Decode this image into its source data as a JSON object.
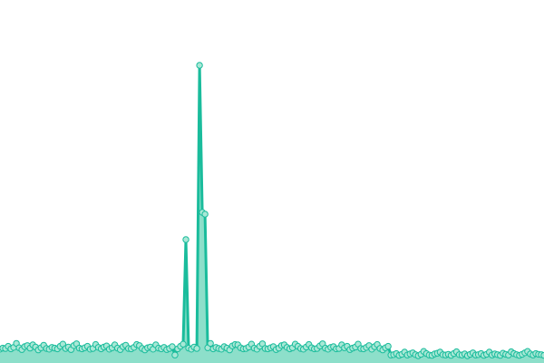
{
  "chart_data": {
    "type": "area",
    "title": "",
    "xlabel": "",
    "ylabel": "",
    "ylim": [
      0,
      100
    ],
    "grid": false,
    "legend": "none",
    "markers": true,
    "colors": {
      "line": "#1abc9c",
      "fill": "#8ddfca",
      "marker_fill": "#a9e8d6",
      "marker_stroke": "#1abc9c"
    },
    "series": [
      {
        "values": [
          3.8,
          4.1,
          4.0,
          4.6,
          3.9,
          4.3,
          5.4,
          4.2,
          3.7,
          4.5,
          4.8,
          4.1,
          5.0,
          4.4,
          3.6,
          4.2,
          4.9,
          4.0,
          3.8,
          4.3,
          4.1,
          3.9,
          4.6,
          5.2,
          4.0,
          4.4,
          3.7,
          4.8,
          5.3,
          4.1,
          3.9,
          4.2,
          4.6,
          3.8,
          4.0,
          5.1,
          4.3,
          3.9,
          4.4,
          4.7,
          3.8,
          4.2,
          5.0,
          4.1,
          3.7,
          4.5,
          4.9,
          4.0,
          3.9,
          4.3,
          5.1,
          4.8,
          4.0,
          3.6,
          4.2,
          4.4,
          3.8,
          5.0,
          4.1,
          3.9,
          4.3,
          3.7,
          4.0,
          4.5,
          2.2,
          3.9,
          4.6,
          5.2,
          34.0,
          4.1,
          3.8,
          4.4,
          4.0,
          82.0,
          41.5,
          41.0,
          4.2,
          5.4,
          3.9,
          4.3,
          4.0,
          3.8,
          4.5,
          4.1,
          3.6,
          4.7,
          5.1,
          5.0,
          4.2,
          3.9,
          4.0,
          4.4,
          5.2,
          4.1,
          3.8,
          4.6,
          5.3,
          4.0,
          3.9,
          4.2,
          4.5,
          3.7,
          4.1,
          4.8,
          5.0,
          4.3,
          3.9,
          4.2,
          5.2,
          4.6,
          4.0,
          3.8,
          4.4,
          5.1,
          4.2,
          3.9,
          4.0,
          4.7,
          5.3,
          4.1,
          3.8,
          4.3,
          4.5,
          3.9,
          4.0,
          5.0,
          4.2,
          4.6,
          3.7,
          4.1,
          4.4,
          5.2,
          4.0,
          3.9,
          4.3,
          4.8,
          3.8,
          4.5,
          5.1,
          4.0,
          3.6,
          4.2,
          4.6,
          2.2,
          2.3,
          2.6,
          2.1,
          2.4,
          3.0,
          2.2,
          2.5,
          2.8,
          2.3,
          2.0,
          2.4,
          3.2,
          2.6,
          2.2,
          2.1,
          2.5,
          2.7,
          3.0,
          2.3,
          2.2,
          2.4,
          2.1,
          2.6,
          3.1,
          2.3,
          2.2,
          2.5,
          2.0,
          2.4,
          2.8,
          2.2,
          2.3,
          2.6,
          2.1,
          2.4,
          3.0,
          2.2,
          2.5,
          2.3,
          2.1,
          2.7,
          2.4,
          2.2,
          3.1,
          2.6,
          2.3,
          2.1,
          2.4,
          2.8,
          3.2,
          2.5,
          2.2,
          2.6,
          2.4,
          2.3,
          2.1
        ]
      }
    ]
  }
}
